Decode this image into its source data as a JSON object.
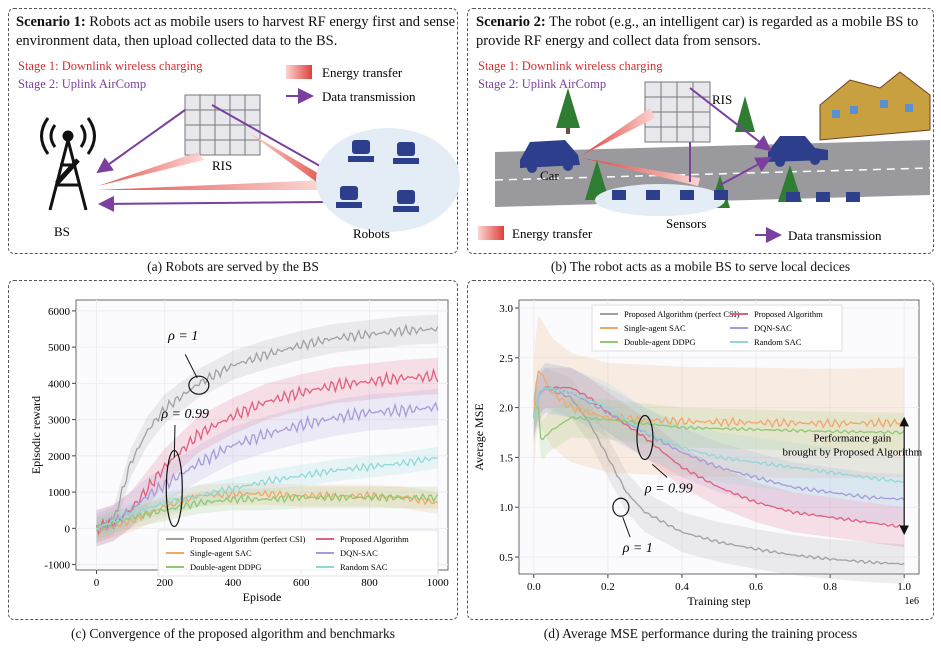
{
  "panel_a": {
    "scenario_label": "Scenario 1:",
    "scenario_text": " Robots act as mobile users to harvest RF energy first and sense environment data, then upload collected data to the BS.",
    "stage1": "Stage 1: Downlink wireless charging",
    "stage2": "Stage 2: Uplink AirComp",
    "legend_energy": "Energy transfer",
    "legend_data": "Data transmission",
    "label_ris": "RIS",
    "label_bs": "BS",
    "label_robots": "Robots",
    "caption": "(a) Robots are served by the BS"
  },
  "panel_b": {
    "scenario_label": "Scenario 2:",
    "scenario_text": " The robot (e.g., an intelligent car) is regarded as a mobile BS to provide RF energy and collect data from sensors.",
    "stage1": "Stage 1: Downlink wireless charging",
    "stage2": "Stage 2: Uplink AirComp",
    "label_ris": "RIS",
    "label_car": "Car",
    "label_sensors": "Sensors",
    "legend_energy": "Energy transfer",
    "legend_data": "Data transmission",
    "caption": "(b) The robot acts as a mobile BS to serve local decices"
  },
  "colors": {
    "energy": "#e0403a",
    "data": "#7b3fa0",
    "stage1": "#d32f2f",
    "stage2": "#7b3fa0"
  },
  "chart_data": [
    {
      "type": "line",
      "id": "c",
      "xlabel": "Episode",
      "ylabel": "Episodic reward",
      "xlim": [
        -60,
        1030
      ],
      "ylim": [
        -1150,
        6300
      ],
      "xticks": [
        0,
        200,
        400,
        600,
        800,
        1000
      ],
      "yticks": [
        -1000,
        0,
        1000,
        2000,
        3000,
        4000,
        5000,
        6000
      ],
      "annotations": [
        "ρ = 1",
        "ρ = 0.99"
      ],
      "series": [
        {
          "name": "Proposed Algorithm (perfect CSI)",
          "color": "#a0a0a0",
          "x": [
            0,
            50,
            100,
            150,
            200,
            300,
            400,
            500,
            600,
            700,
            800,
            900,
            1000
          ],
          "y": [
            0,
            200,
            1800,
            2700,
            3300,
            4000,
            4500,
            4800,
            5050,
            5250,
            5350,
            5450,
            5500
          ],
          "band": 400
        },
        {
          "name": "Proposed Algorithm",
          "color": "#e0607e",
          "x": [
            0,
            50,
            100,
            150,
            200,
            300,
            400,
            500,
            600,
            700,
            800,
            900,
            1000
          ],
          "y": [
            0,
            150,
            500,
            1100,
            1700,
            2600,
            3100,
            3500,
            3750,
            3950,
            4050,
            4150,
            4200
          ],
          "band": 500
        },
        {
          "name": "Single-agent SAC",
          "color": "#f0a868",
          "x": [
            0,
            100,
            200,
            300,
            400,
            500,
            600,
            700,
            800,
            900,
            1000
          ],
          "y": [
            -100,
            200,
            600,
            900,
            950,
            950,
            900,
            900,
            900,
            850,
            700
          ],
          "band": 300
        },
        {
          "name": "DQN-SAC",
          "color": "#a89ad8",
          "x": [
            0,
            50,
            100,
            150,
            200,
            300,
            400,
            500,
            600,
            700,
            800,
            900,
            1000
          ],
          "y": [
            0,
            150,
            500,
            900,
            1200,
            1800,
            2300,
            2600,
            2850,
            3050,
            3200,
            3250,
            3350
          ],
          "band": 500
        },
        {
          "name": "Double-agent DDPG",
          "color": "#8fc870",
          "x": [
            0,
            100,
            200,
            300,
            400,
            500,
            600,
            700,
            800,
            900,
            1000
          ],
          "y": [
            0,
            300,
            500,
            700,
            800,
            800,
            850,
            850,
            850,
            850,
            850
          ],
          "band": 300
        },
        {
          "name": "Random SAC",
          "color": "#90d8d8",
          "x": [
            0,
            100,
            200,
            300,
            400,
            500,
            600,
            700,
            800,
            900,
            1000
          ],
          "y": [
            0,
            400,
            700,
            900,
            1100,
            1300,
            1450,
            1600,
            1700,
            1800,
            1950
          ],
          "band": 300
        }
      ]
    },
    {
      "type": "line",
      "id": "d",
      "xlabel": "Training step",
      "ylabel": "Average MSE",
      "x_multiplier_label": "1e6",
      "xlim": [
        -0.04,
        1.04
      ],
      "ylim": [
        0.33,
        3.08
      ],
      "xticks": [
        0.0,
        0.2,
        0.4,
        0.6,
        0.8,
        1.0
      ],
      "yticks": [
        0.5,
        1.0,
        1.5,
        2.0,
        2.5,
        3.0
      ],
      "annotations": [
        "ρ = 0.99",
        "ρ = 1",
        "Performance gain",
        "brought by Proposed Algorithm"
      ],
      "series": [
        {
          "name": "Proposed Algorithm (perfect CSI)",
          "color": "#a0a0a0",
          "x": [
            0,
            0.01,
            0.03,
            0.1,
            0.15,
            0.2,
            0.25,
            0.3,
            0.4,
            0.5,
            0.6,
            0.7,
            0.8,
            0.9,
            1.0
          ],
          "y": [
            1.9,
            2.1,
            2.2,
            2.1,
            1.85,
            1.5,
            1.15,
            0.95,
            0.75,
            0.65,
            0.58,
            0.52,
            0.48,
            0.45,
            0.43
          ],
          "band": 0.2
        },
        {
          "name": "Proposed Algorithm",
          "color": "#e0607e",
          "x": [
            0,
            0.01,
            0.03,
            0.1,
            0.15,
            0.2,
            0.3,
            0.4,
            0.5,
            0.6,
            0.7,
            0.8,
            0.9,
            1.0
          ],
          "y": [
            1.9,
            2.1,
            2.2,
            2.2,
            2.1,
            1.95,
            1.7,
            1.4,
            1.2,
            1.05,
            0.95,
            0.9,
            0.85,
            0.8
          ],
          "band": 0.2
        },
        {
          "name": "Single-agent SAC",
          "color": "#f0a868",
          "x": [
            0,
            0.01,
            0.05,
            0.1,
            0.2,
            0.3,
            0.4,
            0.6,
            0.8,
            1.0
          ],
          "y": [
            1.9,
            2.4,
            2.15,
            2.0,
            1.9,
            1.88,
            1.86,
            1.85,
            1.84,
            1.85
          ],
          "band": 0.55
        },
        {
          "name": "DQN-SAC",
          "color": "#a89ad8",
          "x": [
            0,
            0.01,
            0.03,
            0.1,
            0.2,
            0.3,
            0.4,
            0.5,
            0.6,
            0.7,
            0.8,
            0.9,
            1.0
          ],
          "y": [
            1.9,
            2.1,
            2.2,
            2.15,
            1.95,
            1.75,
            1.55,
            1.4,
            1.3,
            1.2,
            1.15,
            1.1,
            1.08
          ],
          "band": 0.25
        },
        {
          "name": "Double-agent DDPG",
          "color": "#8fc870",
          "x": [
            0,
            0.01,
            0.02,
            0.04,
            0.1,
            0.2,
            0.4,
            0.6,
            0.8,
            1.0
          ],
          "y": [
            1.9,
            2.1,
            1.65,
            1.75,
            1.9,
            1.88,
            1.8,
            1.78,
            1.76,
            1.75
          ],
          "band": 0.2
        },
        {
          "name": "Random SAC",
          "color": "#90d8d8",
          "x": [
            0,
            0.01,
            0.03,
            0.1,
            0.2,
            0.3,
            0.4,
            0.5,
            0.6,
            0.7,
            0.8,
            0.9,
            1.0
          ],
          "y": [
            1.9,
            2.1,
            2.2,
            2.15,
            2.0,
            1.75,
            1.6,
            1.5,
            1.45,
            1.4,
            1.35,
            1.3,
            1.25
          ],
          "band": 0.25
        }
      ]
    }
  ]
}
